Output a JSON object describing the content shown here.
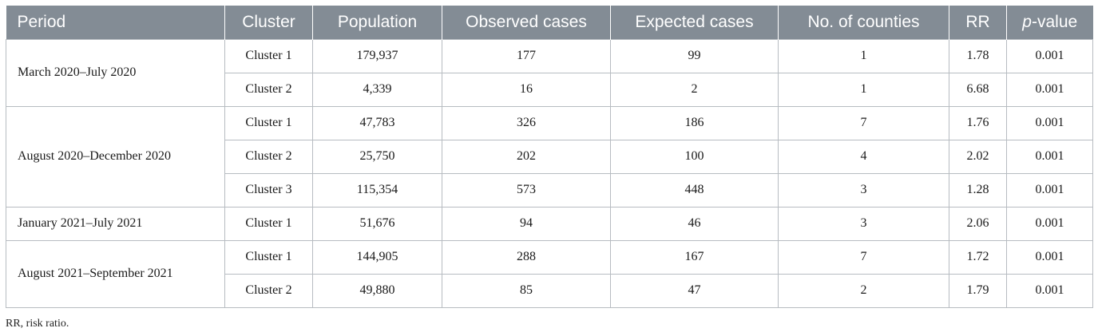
{
  "table": {
    "headers": [
      "Period",
      "Cluster",
      "Population",
      "Observed cases",
      "Expected cases",
      "No. of counties",
      "RR",
      "-value"
    ],
    "header_p_italic": "p",
    "groups": [
      {
        "period": "March 2020–July 2020",
        "rows": [
          {
            "cluster": "Cluster 1",
            "population": "179,937",
            "observed": "177",
            "expected": "99",
            "counties": "1",
            "rr": "1.78",
            "p": "0.001"
          },
          {
            "cluster": "Cluster 2",
            "population": "4,339",
            "observed": "16",
            "expected": "2",
            "counties": "1",
            "rr": "6.68",
            "p": "0.001"
          }
        ]
      },
      {
        "period": "August 2020–December 2020",
        "rows": [
          {
            "cluster": "Cluster 1",
            "population": "47,783",
            "observed": "326",
            "expected": "186",
            "counties": "7",
            "rr": "1.76",
            "p": "0.001"
          },
          {
            "cluster": "Cluster 2",
            "population": "25,750",
            "observed": "202",
            "expected": "100",
            "counties": "4",
            "rr": "2.02",
            "p": "0.001"
          },
          {
            "cluster": "Cluster 3",
            "population": "115,354",
            "observed": "573",
            "expected": "448",
            "counties": "3",
            "rr": "1.28",
            "p": "0.001"
          }
        ]
      },
      {
        "period": "January 2021–July 2021",
        "rows": [
          {
            "cluster": "Cluster 1",
            "population": "51,676",
            "observed": "94",
            "expected": "46",
            "counties": "3",
            "rr": "2.06",
            "p": "0.001"
          }
        ]
      },
      {
        "period": "August 2021–September 2021",
        "rows": [
          {
            "cluster": "Cluster 1",
            "population": "144,905",
            "observed": "288",
            "expected": "167",
            "counties": "7",
            "rr": "1.72",
            "p": "0.001"
          },
          {
            "cluster": "Cluster 2",
            "population": "49,880",
            "observed": "85",
            "expected": "47",
            "counties": "2",
            "rr": "1.79",
            "p": "0.001"
          }
        ]
      }
    ]
  },
  "footnote": "RR, risk ratio.",
  "colors": {
    "header_bg": "#838c95",
    "border": "#b7bcc1"
  }
}
